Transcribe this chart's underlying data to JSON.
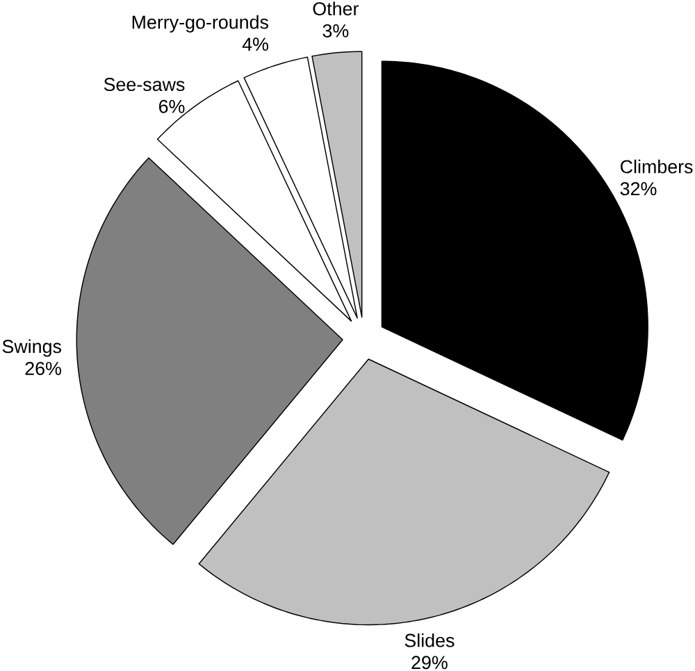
{
  "chart_data": {
    "type": "pie",
    "categories": [
      "Climbers",
      "Slides",
      "Swings",
      "See-saws",
      "Merry-go-rounds",
      "Other"
    ],
    "values": [
      32,
      29,
      26,
      6,
      4,
      3
    ],
    "colors": [
      "#000000",
      "#c0c0c0",
      "#808080",
      "#ffffff",
      "#ffffff",
      "#c0c0c0"
    ],
    "value_labels": [
      "32%",
      "29%",
      "26%",
      "6%",
      "4%",
      "3%"
    ]
  }
}
